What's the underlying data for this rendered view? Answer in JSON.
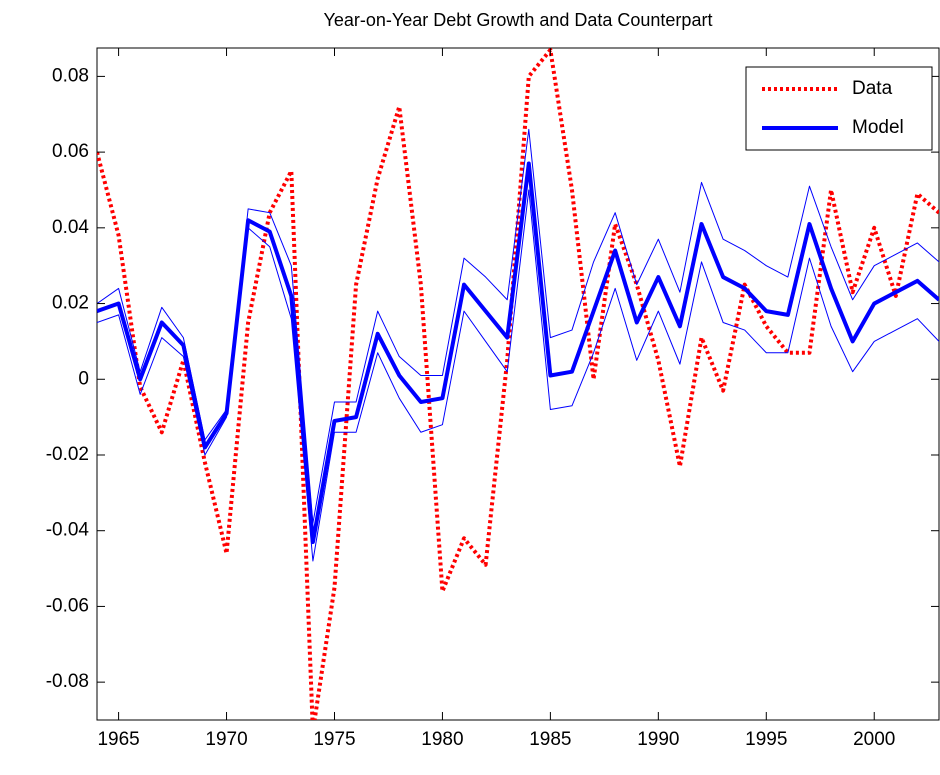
{
  "chart_data": {
    "type": "line",
    "title": "Year-on-Year Debt Growth and Data Counterpart",
    "x": [
      1964,
      1965,
      1966,
      1967,
      1968,
      1969,
      1970,
      1971,
      1972,
      1973,
      1974,
      1975,
      1976,
      1977,
      1978,
      1979,
      1980,
      1981,
      1982,
      1983,
      1984,
      1985,
      1986,
      1987,
      1988,
      1989,
      1990,
      1991,
      1992,
      1993,
      1994,
      1995,
      1996,
      1997,
      1998,
      1999,
      2000,
      2001,
      2002,
      2003
    ],
    "series": [
      {
        "name": "Data",
        "color": "#ff0000",
        "linestyle": "dotted",
        "values": [
          0.06,
          0.038,
          -0.002,
          -0.014,
          0.005,
          -0.022,
          -0.046,
          0.015,
          0.044,
          0.055,
          -0.093,
          -0.055,
          0.025,
          0.053,
          0.072,
          0.025,
          -0.056,
          -0.042,
          -0.049,
          0.005,
          0.08,
          0.087,
          0.05,
          0.0,
          0.041,
          0.025,
          0.005,
          -0.023,
          0.011,
          -0.003,
          0.025,
          0.014,
          0.007,
          0.007,
          0.05,
          0.023,
          0.04,
          0.022,
          0.049,
          0.044
        ]
      },
      {
        "name": "Model",
        "color": "#0000ff",
        "linestyle": "solid",
        "values": [
          0.018,
          0.02,
          0.0,
          0.015,
          0.009,
          -0.018,
          -0.009,
          0.042,
          0.039,
          0.022,
          -0.043,
          -0.011,
          -0.01,
          0.012,
          0.001,
          -0.006,
          -0.005,
          0.025,
          0.018,
          0.011,
          0.057,
          0.001,
          0.002,
          0.018,
          0.034,
          0.015,
          0.027,
          0.014,
          0.041,
          0.027,
          0.024,
          0.018,
          0.017,
          0.041,
          0.024,
          0.01,
          0.02,
          0.023,
          0.026,
          0.021
        ]
      },
      {
        "color": "#0000ff",
        "linestyle": "thin",
        "values": [
          0.02,
          0.024,
          0.002,
          0.019,
          0.011,
          -0.016,
          -0.008,
          0.045,
          0.044,
          0.03,
          -0.038,
          -0.006,
          -0.006,
          0.018,
          0.006,
          0.001,
          0.001,
          0.032,
          0.027,
          0.021,
          0.066,
          0.011,
          0.013,
          0.031,
          0.044,
          0.025,
          0.037,
          0.023,
          0.052,
          0.037,
          0.034,
          0.03,
          0.027,
          0.051,
          0.035,
          0.021,
          0.03,
          0.033,
          0.036,
          0.031
        ]
      },
      {
        "color": "#0000ff",
        "linestyle": "thin",
        "values": [
          0.015,
          0.017,
          -0.004,
          0.011,
          0.006,
          -0.02,
          -0.01,
          0.04,
          0.035,
          0.016,
          -0.048,
          -0.014,
          -0.014,
          0.007,
          -0.005,
          -0.014,
          -0.012,
          0.018,
          0.01,
          0.002,
          0.05,
          -0.008,
          -0.007,
          0.007,
          0.024,
          0.005,
          0.018,
          0.004,
          0.031,
          0.015,
          0.013,
          0.007,
          0.007,
          0.032,
          0.014,
          0.002,
          0.01,
          0.013,
          0.016,
          0.01
        ]
      }
    ],
    "xlim": [
      1964,
      2003
    ],
    "xticks": [
      1965,
      1970,
      1975,
      1980,
      1985,
      1990,
      1995,
      2000
    ],
    "ylim": [
      -0.09,
      0.0875
    ],
    "yticks": [
      -0.08,
      -0.06,
      -0.04,
      -0.02,
      0,
      0.02,
      0.04,
      0.06,
      0.08
    ],
    "legend": "upper right",
    "grid": false
  }
}
